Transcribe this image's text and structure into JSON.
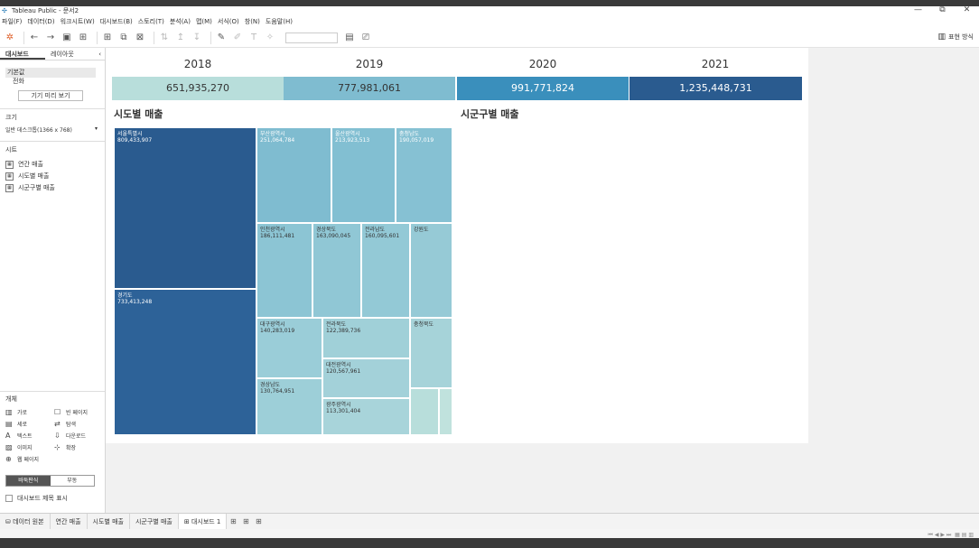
{
  "window": {
    "title": "Tableau Public - 문서2",
    "minimize": "—",
    "restore": "⧉",
    "close": "✕"
  },
  "menu": [
    "파일(F)",
    "데이터(D)",
    "워크시트(W)",
    "대시보드(B)",
    "스토리(T)",
    "분석(A)",
    "맵(M)",
    "서식(O)",
    "창(N)",
    "도움말(H)"
  ],
  "toolbar": {
    "presentation_label": "표현 방식"
  },
  "sidebar": {
    "tab_dashboard": "대시보드",
    "tab_layout": "레이아웃",
    "collapse": "‹",
    "device_default": "기본값",
    "device_phone": "전화",
    "preview_button": "기기 미리 보기",
    "size_title": "크기",
    "size_value": "일반 데스크톱(1366 x 768)",
    "size_arrow": "▾",
    "sheets_title": "시트",
    "sheets": [
      "연간 매출",
      "시도별 매출",
      "시군구별 매출"
    ],
    "objects_title": "개체",
    "objects": [
      {
        "icon": "▥",
        "label": "가로",
        "icon_name": "horizontal-icon"
      },
      {
        "icon": "☐",
        "label": "빈 페이지",
        "icon_name": "blank-icon"
      },
      {
        "icon": "▤",
        "label": "세로",
        "icon_name": "vertical-icon"
      },
      {
        "icon": "⇄",
        "label": "탐색",
        "icon_name": "navigation-icon"
      },
      {
        "icon": "A",
        "label": "텍스트",
        "icon_name": "text-icon"
      },
      {
        "icon": "⇩",
        "label": "다운로드",
        "icon_name": "download-icon"
      },
      {
        "icon": "▨",
        "label": "이미지",
        "icon_name": "image-icon"
      },
      {
        "icon": "⊹",
        "label": "확장",
        "icon_name": "extension-icon"
      },
      {
        "icon": "⊕",
        "label": "웹 페이지",
        "icon_name": "webpage-icon"
      }
    ],
    "tiled": "바둑판식",
    "floating": "부동",
    "show_title": "대시보드 제목 표시"
  },
  "dashboard": {
    "years": [
      "2018",
      "2019",
      "2020",
      "2021"
    ],
    "kpis": [
      {
        "value": "651,935,270",
        "color": "#b8dedb",
        "text": "#333333"
      },
      {
        "value": "777,981,061",
        "color": "#7fbcd0",
        "text": "#333333"
      },
      {
        "value": "991,771,824",
        "color": "#3a8fbc",
        "text": "#ffffff"
      },
      {
        "value": "1,235,448,731",
        "color": "#2a5b8f",
        "text": "#ffffff"
      }
    ],
    "title_sido": "시도별 매출",
    "title_sigungu": "시군구별 매출",
    "treemap": [
      {
        "name": "서울특별시",
        "value": "809,433,907",
        "color": "#2a5b8f",
        "text": "#ffffff"
      },
      {
        "name": "경기도",
        "value": "733,413,248",
        "color": "#2d6298",
        "text": "#ffffff"
      },
      {
        "name": "부산광역시",
        "value": "251,064,784",
        "color": "#7fbcd0",
        "text": "#ffffff"
      },
      {
        "name": "울산광역시",
        "value": "213,923,513",
        "color": "#82bfd2",
        "text": "#ffffff"
      },
      {
        "name": "충청남도",
        "value": "190,057,019",
        "color": "#86c1d3",
        "text": "#ffffff"
      },
      {
        "name": "인천광역시",
        "value": "186,111,481",
        "color": "#8cc5d4",
        "text": "#333333"
      },
      {
        "name": "경상북도",
        "value": "163,090,045",
        "color": "#90c7d5",
        "text": "#333333"
      },
      {
        "name": "전라남도",
        "value": "160,095,601",
        "color": "#93c9d6",
        "text": "#333333"
      },
      {
        "name": "강원도",
        "value": "",
        "color": "#96cad6",
        "text": "#333333"
      },
      {
        "name": "대구광역시",
        "value": "140,283,019",
        "color": "#9acdd8",
        "text": "#333333"
      },
      {
        "name": "전라북도",
        "value": "122,389,736",
        "color": "#a0d0d8",
        "text": "#333333"
      },
      {
        "name": "충청북도",
        "value": "",
        "color": "#a6d3d9",
        "text": "#333333"
      },
      {
        "name": "대전광역시",
        "value": "120,567,961",
        "color": "#a3d1d9",
        "text": "#333333"
      },
      {
        "name": "경상남도",
        "value": "130,764,951",
        "color": "#9dcfd8",
        "text": "#333333"
      },
      {
        "name": "광주광역시",
        "value": "113,301,404",
        "color": "#a8d4da",
        "text": "#333333"
      },
      {
        "name": "",
        "value": "",
        "color": "#b8dedb",
        "text": "#333333"
      },
      {
        "name": "",
        "value": "",
        "color": "#c0e2dd",
        "text": "#333333"
      }
    ]
  },
  "bottom_tabs": [
    "데이터 원본",
    "연간 매출",
    "시도별 매출",
    "시군구별 매출",
    "대시보드 1"
  ]
}
